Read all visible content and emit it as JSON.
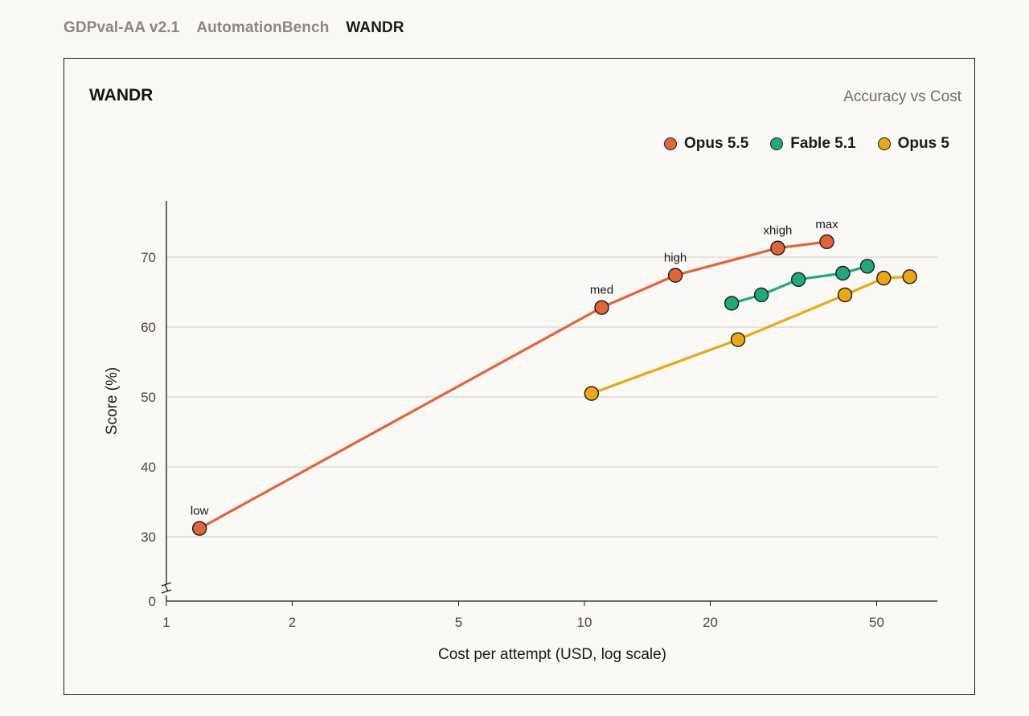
{
  "tabs": [
    {
      "label": "GDPval-AA v2.1",
      "active": false
    },
    {
      "label": "AutomationBench",
      "active": false
    },
    {
      "label": "WANDR",
      "active": true
    }
  ],
  "card": {
    "title": "WANDR",
    "subtitle": "Accuracy vs Cost"
  },
  "chart_data": {
    "type": "line",
    "title": "WANDR",
    "subtitle": "Accuracy vs Cost",
    "xlabel": "Cost per attempt (USD, log scale)",
    "ylabel": "Score (%)",
    "x_scale": "log",
    "xlim": [
      1,
      70
    ],
    "x_ticks": [
      1,
      2,
      5,
      10,
      20,
      50
    ],
    "x_tick_labels": [
      "1",
      "2",
      "5",
      "10",
      "20",
      "50"
    ],
    "ylim": [
      0,
      78
    ],
    "y_axis_break": true,
    "y_ticks": [
      0,
      30,
      40,
      50,
      60,
      70
    ],
    "y_tick_labels": [
      "0",
      "30",
      "40",
      "50",
      "60",
      "70"
    ],
    "grid": "horizontal",
    "legend_position": "top-right",
    "series": [
      {
        "name": "Opus 5.5",
        "color": "#e0653a",
        "points": [
          {
            "x": 1.2,
            "y": 31.2,
            "label": "low"
          },
          {
            "x": 11.0,
            "y": 62.8,
            "label": "med"
          },
          {
            "x": 16.5,
            "y": 67.4,
            "label": "high"
          },
          {
            "x": 29.0,
            "y": 71.3,
            "label": "xhigh"
          },
          {
            "x": 38.0,
            "y": 72.2,
            "label": "max"
          }
        ]
      },
      {
        "name": "Fable 5.1",
        "color": "#1faa7e",
        "points": [
          {
            "x": 22.5,
            "y": 63.4
          },
          {
            "x": 26.5,
            "y": 64.6
          },
          {
            "x": 32.5,
            "y": 66.8
          },
          {
            "x": 41.5,
            "y": 67.7
          },
          {
            "x": 47.5,
            "y": 68.7
          }
        ]
      },
      {
        "name": "Opus 5",
        "color": "#e9a915",
        "points": [
          {
            "x": 10.4,
            "y": 50.5
          },
          {
            "x": 23.3,
            "y": 58.2
          },
          {
            "x": 42.0,
            "y": 64.6
          },
          {
            "x": 52.0,
            "y": 67.0
          },
          {
            "x": 60.0,
            "y": 67.2
          }
        ]
      }
    ]
  }
}
